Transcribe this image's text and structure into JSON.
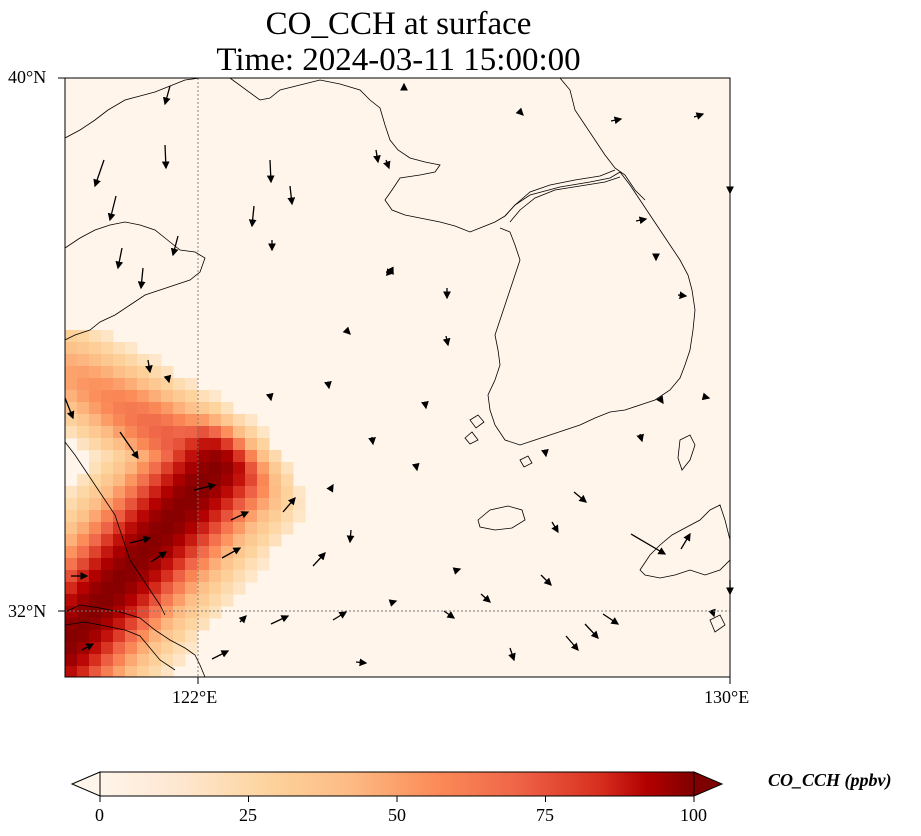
{
  "title": {
    "line1": "CO_CCH at surface",
    "line2": "Time: 2024-03-11 15:00:00"
  },
  "map": {
    "lat_labels": [
      "40°N",
      "32°N"
    ],
    "lon_labels": [
      "122°E",
      "130°E"
    ],
    "extent": {
      "lon_min": 120,
      "lon_max": 130,
      "lat_min": 31,
      "lat_max": 40
    },
    "gridlines": {
      "lons": [
        122
      ],
      "lats": [
        32
      ],
      "style": "dotted"
    },
    "plume_color_high": "#7f0000",
    "plume_color_low": "#fdd49e",
    "background_color": "#fff5eb"
  },
  "colorbar": {
    "label": "CO_CCH (ppbv)",
    "ticks": [
      "0",
      "25",
      "50",
      "75",
      "100"
    ],
    "vmin": 0,
    "vmax": 100,
    "extend": "both",
    "colormap": [
      "#fff5eb",
      "#fdd49e",
      "#fdbb84",
      "#fc8d59",
      "#ef6548",
      "#d7301f",
      "#b30000",
      "#7f0000"
    ]
  }
}
